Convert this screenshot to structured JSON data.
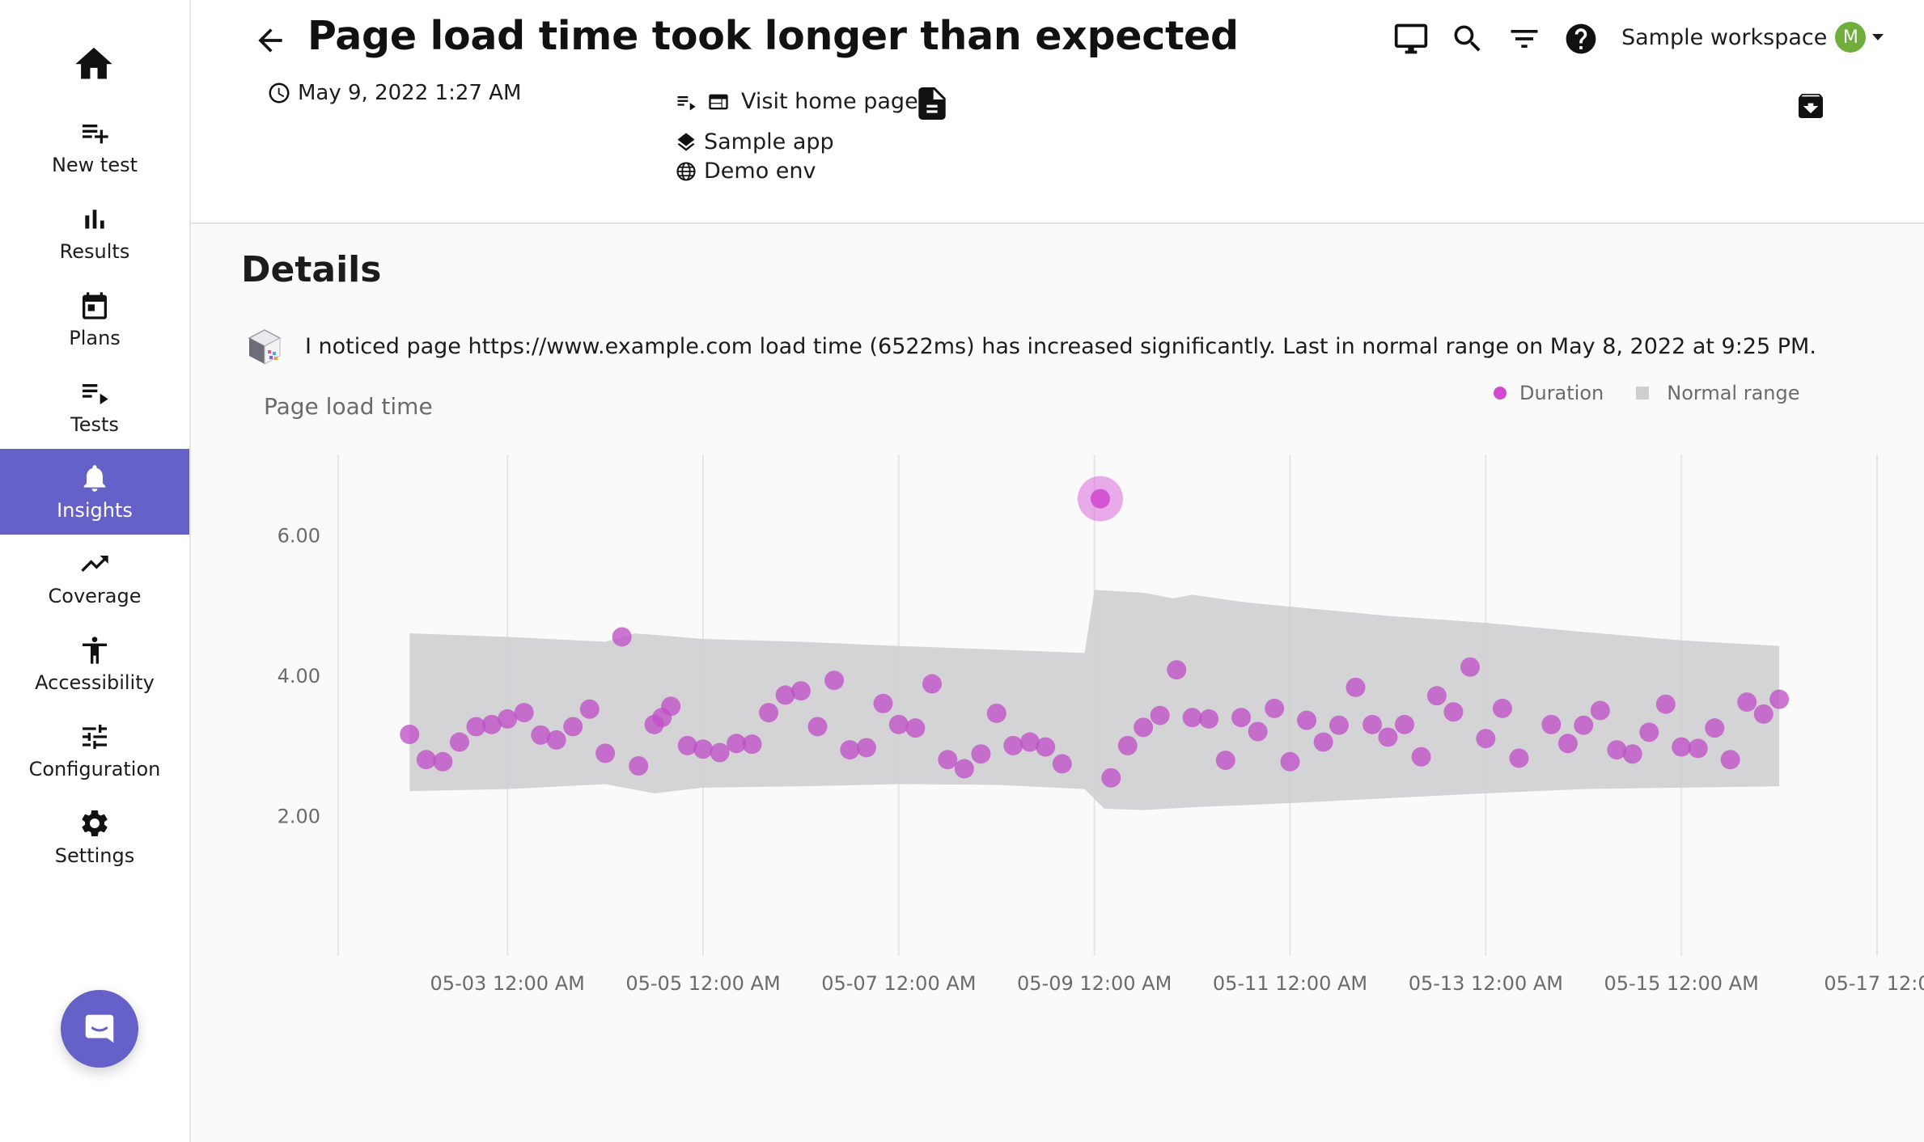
{
  "sidebar": {
    "items": [
      {
        "label": "New test",
        "icon": "playlist-add-icon"
      },
      {
        "label": "Results",
        "icon": "bar-chart-icon"
      },
      {
        "label": "Plans",
        "icon": "calendar-icon"
      },
      {
        "label": "Tests",
        "icon": "playlist-play-icon"
      },
      {
        "label": "Insights",
        "icon": "bell-icon",
        "active": true
      },
      {
        "label": "Coverage",
        "icon": "trending-up-icon"
      },
      {
        "label": "Accessibility",
        "icon": "accessibility-icon"
      },
      {
        "label": "Configuration",
        "icon": "tune-icon"
      },
      {
        "label": "Settings",
        "icon": "gear-icon"
      }
    ]
  },
  "header": {
    "title": "Page load time took longer than expected",
    "date": "May 9, 2022 1:27 AM",
    "test_name": "Visit home page",
    "app_name": "Sample app",
    "env_name": "Demo env",
    "workspace": "Sample workspace",
    "avatar_initial": "M"
  },
  "details": {
    "heading": "Details",
    "message": "I noticed page https://www.example.com load time (6522ms) has increased significantly. Last in normal range on May 8, 2022 at 9:25 PM."
  },
  "colors": {
    "accent": "#6661c8",
    "point": "#c050c8",
    "highlight": "#d24ad2",
    "band": "#cfcfd3",
    "avatar": "#6fae3b"
  },
  "chart_data": {
    "type": "scatter",
    "title": "Page load time",
    "legend": [
      "Duration",
      "Normal range"
    ],
    "legend_position": "top-right",
    "y_ticks": [
      "2.00",
      "4.00",
      "6.00"
    ],
    "x_ticks": [
      "05-03 12:00 AM",
      "05-05 12:00 AM",
      "05-07 12:00 AM",
      "05-09 12:00 AM",
      "05-11 12:00 AM",
      "05-13 12:00 AM",
      "05-15 12:00 AM",
      "05-17 12:0"
    ],
    "xlim_days": [
      1.27,
      17.0
    ],
    "ylim": [
      0.0,
      7.15
    ],
    "highlight": {
      "x": 9.06,
      "y": 6.52
    },
    "points": [
      [
        2.0,
        3.16
      ],
      [
        2.17,
        2.8
      ],
      [
        2.34,
        2.77
      ],
      [
        2.51,
        3.05
      ],
      [
        2.68,
        3.27
      ],
      [
        2.84,
        3.3
      ],
      [
        3.0,
        3.38
      ],
      [
        3.17,
        3.47
      ],
      [
        3.34,
        3.15
      ],
      [
        3.5,
        3.08
      ],
      [
        3.67,
        3.27
      ],
      [
        3.84,
        3.52
      ],
      [
        4.0,
        2.89
      ],
      [
        4.17,
        4.55
      ],
      [
        4.34,
        2.71
      ],
      [
        4.5,
        3.3
      ],
      [
        4.58,
        3.4
      ],
      [
        4.67,
        3.56
      ],
      [
        4.84,
        3.0
      ],
      [
        5.0,
        2.95
      ],
      [
        5.17,
        2.9
      ],
      [
        5.34,
        3.03
      ],
      [
        5.5,
        3.02
      ],
      [
        5.67,
        3.47
      ],
      [
        5.84,
        3.72
      ],
      [
        6.0,
        3.78
      ],
      [
        6.17,
        3.27
      ],
      [
        6.34,
        3.93
      ],
      [
        6.5,
        2.94
      ],
      [
        6.67,
        2.97
      ],
      [
        6.84,
        3.6
      ],
      [
        7.0,
        3.3
      ],
      [
        7.17,
        3.25
      ],
      [
        7.34,
        3.88
      ],
      [
        7.5,
        2.8
      ],
      [
        7.67,
        2.67
      ],
      [
        7.84,
        2.88
      ],
      [
        8.0,
        3.46
      ],
      [
        8.17,
        3.0
      ],
      [
        8.34,
        3.05
      ],
      [
        8.5,
        2.98
      ],
      [
        8.67,
        2.74
      ],
      [
        9.17,
        2.54
      ],
      [
        9.34,
        3.0
      ],
      [
        9.5,
        3.26
      ],
      [
        9.67,
        3.43
      ],
      [
        9.84,
        4.08
      ],
      [
        10.0,
        3.4
      ],
      [
        10.17,
        3.38
      ],
      [
        10.34,
        2.79
      ],
      [
        10.5,
        3.4
      ],
      [
        10.67,
        3.2
      ],
      [
        10.84,
        3.53
      ],
      [
        11.0,
        2.77
      ],
      [
        11.17,
        3.36
      ],
      [
        11.34,
        3.05
      ],
      [
        11.5,
        3.29
      ],
      [
        11.67,
        3.83
      ],
      [
        11.84,
        3.3
      ],
      [
        12.0,
        3.12
      ],
      [
        12.17,
        3.3
      ],
      [
        12.34,
        2.84
      ],
      [
        12.5,
        3.71
      ],
      [
        12.67,
        3.48
      ],
      [
        12.84,
        4.12
      ],
      [
        13.0,
        3.1
      ],
      [
        13.17,
        3.53
      ],
      [
        13.34,
        2.82
      ],
      [
        13.67,
        3.3
      ],
      [
        13.84,
        3.03
      ],
      [
        14.0,
        3.29
      ],
      [
        14.17,
        3.5
      ],
      [
        14.34,
        2.94
      ],
      [
        14.5,
        2.88
      ],
      [
        14.67,
        3.19
      ],
      [
        14.84,
        3.59
      ],
      [
        15.0,
        2.98
      ],
      [
        15.17,
        2.96
      ],
      [
        15.34,
        3.25
      ],
      [
        15.5,
        2.8
      ],
      [
        15.67,
        3.62
      ],
      [
        15.84,
        3.45
      ],
      [
        16.0,
        3.66
      ]
    ],
    "band_upper": [
      [
        2.0,
        4.6
      ],
      [
        3.0,
        4.55
      ],
      [
        4.0,
        4.48
      ],
      [
        4.3,
        4.6
      ],
      [
        4.5,
        4.58
      ],
      [
        5.0,
        4.52
      ],
      [
        6.0,
        4.48
      ],
      [
        7.0,
        4.42
      ],
      [
        8.0,
        4.37
      ],
      [
        8.9,
        4.32
      ],
      [
        9.0,
        5.22
      ],
      [
        9.5,
        5.18
      ],
      [
        9.8,
        5.1
      ],
      [
        10.0,
        5.15
      ],
      [
        10.5,
        5.05
      ],
      [
        11.0,
        4.98
      ],
      [
        12.0,
        4.85
      ],
      [
        13.0,
        4.75
      ],
      [
        14.0,
        4.62
      ],
      [
        15.0,
        4.5
      ],
      [
        16.0,
        4.42
      ]
    ],
    "band_lower": [
      [
        2.0,
        2.35
      ],
      [
        3.0,
        2.38
      ],
      [
        4.0,
        2.45
      ],
      [
        4.5,
        2.32
      ],
      [
        5.0,
        2.4
      ],
      [
        6.0,
        2.42
      ],
      [
        7.0,
        2.45
      ],
      [
        8.0,
        2.44
      ],
      [
        8.9,
        2.38
      ],
      [
        9.1,
        2.1
      ],
      [
        9.5,
        2.08
      ],
      [
        10.0,
        2.12
      ],
      [
        11.0,
        2.18
      ],
      [
        12.0,
        2.25
      ],
      [
        13.0,
        2.32
      ],
      [
        14.0,
        2.38
      ],
      [
        15.0,
        2.4
      ],
      [
        16.0,
        2.42
      ]
    ]
  }
}
